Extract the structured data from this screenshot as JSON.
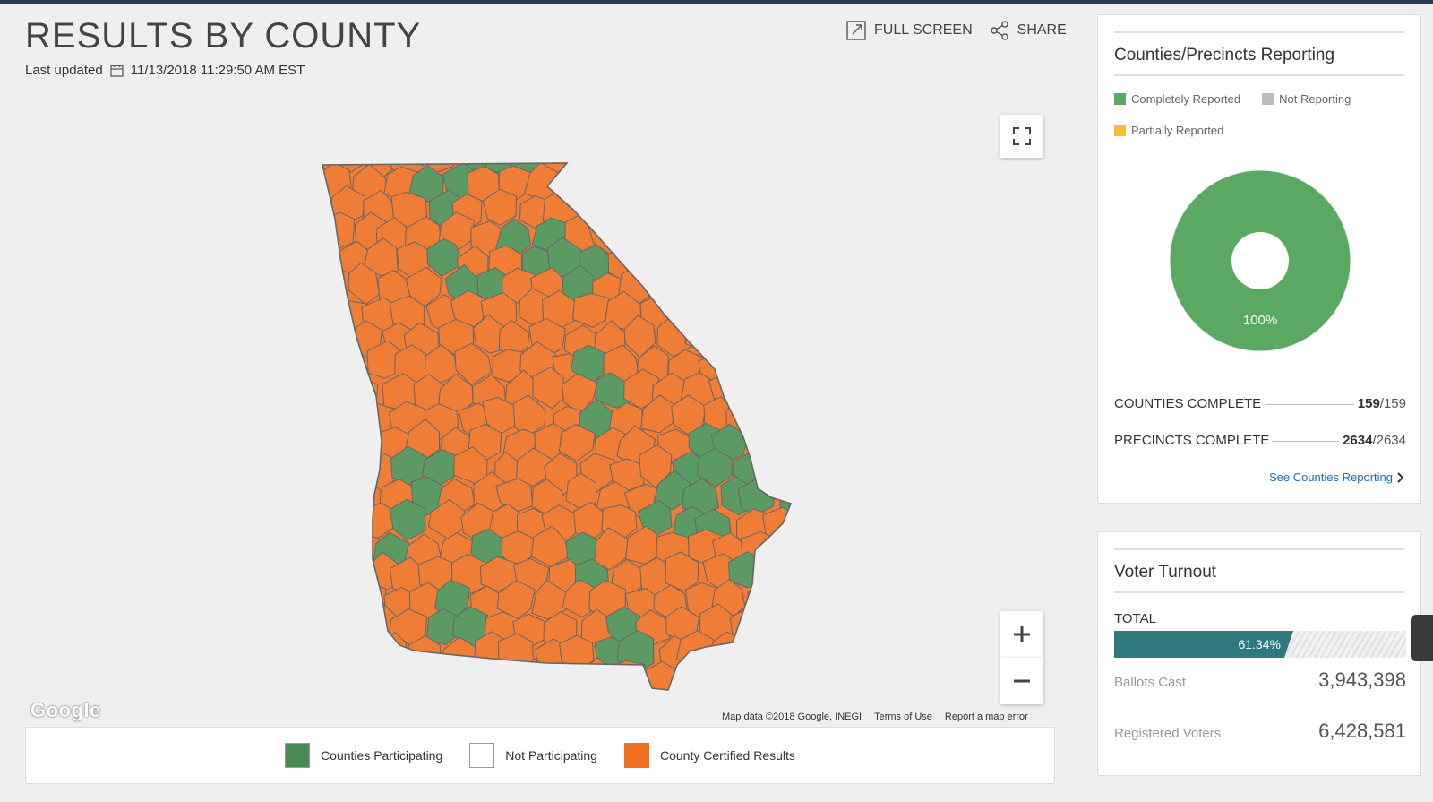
{
  "header": {
    "title": "RESULTS BY COUNTY",
    "updated_label": "Last updated",
    "updated_value": "11/13/2018 11:29:50 AM EST",
    "full_screen": "FULL SCREEN",
    "share": "SHARE"
  },
  "map": {
    "google": "Google",
    "attribution": [
      "Map data ©2018 Google, INEGI",
      "Terms of Use",
      "Report a map error"
    ],
    "colors": {
      "participating": "#5b9a63",
      "certified": "#f07d35",
      "border": "#666666"
    }
  },
  "legend": {
    "items": [
      {
        "label": "Counties Participating",
        "color": "#4a8a55"
      },
      {
        "label": "Not Participating",
        "color": "#ffffff"
      },
      {
        "label": "County Certified Results",
        "color": "#f07020"
      }
    ]
  },
  "reporting": {
    "title": "Counties/Precincts Reporting",
    "legend": [
      {
        "label": "Completely Reported",
        "color": "#5aa862"
      },
      {
        "label": "Not Reporting",
        "color": "#bdbdbd"
      },
      {
        "label": "Partially Reported",
        "color": "#f7bd2c"
      }
    ],
    "donut_percent": "100%",
    "donut_color": "#5aa862",
    "counties_label": "COUNTIES COMPLETE",
    "counties_done": "159",
    "counties_total": "/159",
    "precincts_label": "PRECINCTS COMPLETE",
    "precincts_done": "2634",
    "precincts_total": "/2634",
    "see_link": "See Counties Reporting"
  },
  "turnout": {
    "title": "Voter Turnout",
    "total_label": "TOTAL",
    "percent_text": "61.34%",
    "percent": 61.34,
    "ballots_label": "Ballots Cast",
    "ballots_value": "3,943,398",
    "registered_label": "Registered Voters",
    "registered_value": "6,428,581"
  }
}
